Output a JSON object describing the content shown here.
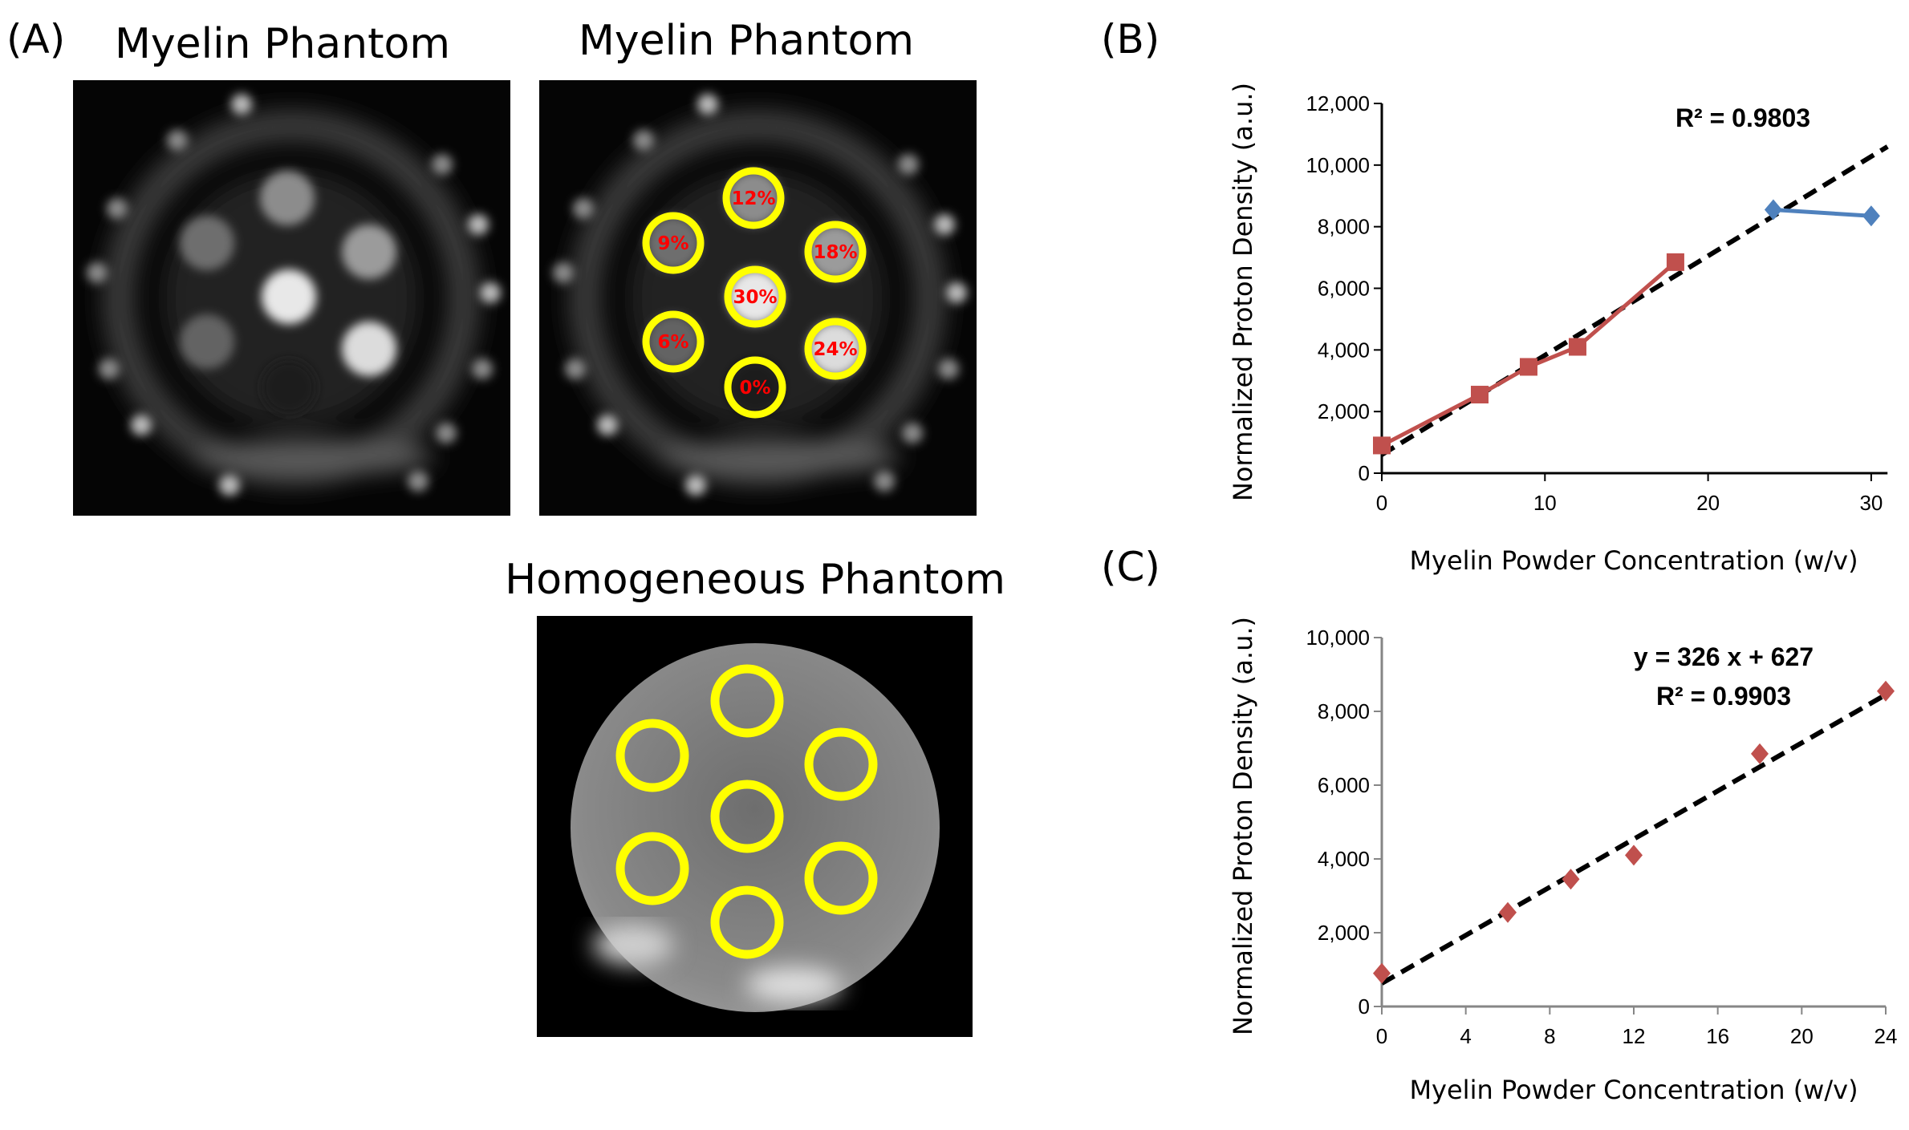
{
  "panel_a": {
    "label": "(A)",
    "image1_title": "Myelin Phantom",
    "image2_title": "Myelin Phantom",
    "image3_title": "Homogeneous Phantom",
    "roi_labels": [
      "12%",
      "9%",
      "18%",
      "30%",
      "6%",
      "24%",
      "0%"
    ],
    "roi_color": "#ffff00",
    "roi_label_color": "#ff0000"
  },
  "chart_data": [
    {
      "panel_label": "(B)",
      "type": "line",
      "xlabel": "Myelin Powder Concentration (w/v)",
      "ylabel": "Normalized Proton Density (a.u.)",
      "xlim": [
        0,
        31
      ],
      "ylim": [
        0,
        12000
      ],
      "xticks": [
        "0",
        "10",
        "20",
        "30"
      ],
      "yticks": [
        "0",
        "2,000",
        "4,000",
        "6,000",
        "8,000",
        "10,000",
        "12,000"
      ],
      "grid": false,
      "series": [
        {
          "color": "#c0504d",
          "marker": "square",
          "x": [
            0,
            6,
            9,
            12,
            18
          ],
          "y": [
            900,
            2550,
            3450,
            4100,
            6850
          ]
        },
        {
          "color": "#4f81bd",
          "marker": "diamond",
          "x": [
            24,
            30
          ],
          "y": [
            8550,
            8350
          ]
        }
      ],
      "trendline": {
        "style": "dashed",
        "color": "#000000",
        "x": [
          0,
          31
        ],
        "y": [
          600,
          10600
        ]
      },
      "annotation": "R² = 0.9803"
    },
    {
      "panel_label": "(C)",
      "type": "scatter",
      "xlabel": "Myelin Powder Concentration (w/v)",
      "ylabel": "Normalized Proton Density (a.u.)",
      "xlim": [
        0,
        24
      ],
      "ylim": [
        0,
        10000
      ],
      "xticks": [
        "0",
        "4",
        "8",
        "12",
        "16",
        "20",
        "24"
      ],
      "yticks": [
        "0",
        "2,000",
        "4,000",
        "6,000",
        "8,000",
        "10,000"
      ],
      "grid": false,
      "series": [
        {
          "color": "#c0504d",
          "marker": "diamond",
          "x": [
            0,
            6,
            9,
            12,
            18,
            24
          ],
          "y": [
            900,
            2550,
            3450,
            4100,
            6850,
            8550
          ]
        }
      ],
      "trendline": {
        "style": "dashed",
        "color": "#000000",
        "slope": 326,
        "intercept": 627,
        "x": [
          0,
          24
        ]
      },
      "equation": "y = 326 x + 627",
      "annotation": "R² = 0.9903"
    }
  ]
}
